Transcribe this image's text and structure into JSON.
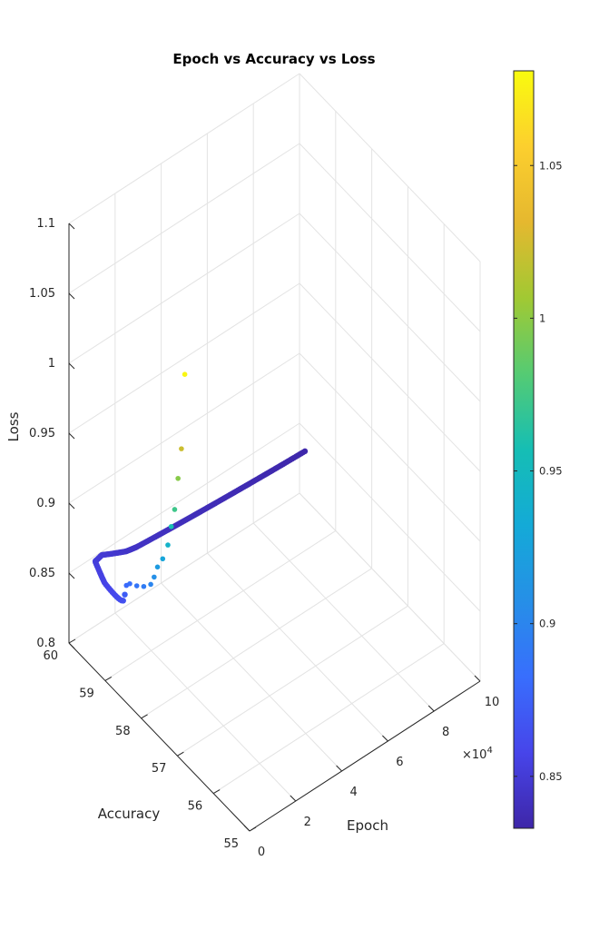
{
  "chart_data": {
    "type": "scatter3",
    "title": "Epoch vs Accuracy vs Loss",
    "xlabel": "Epoch",
    "ylabel": "Accuracy",
    "zlabel": "Loss",
    "x_exponent_label": "×10",
    "x_exponent_power": "4",
    "xlim": [
      0,
      100000
    ],
    "ylim": [
      55,
      60
    ],
    "zlim": [
      0.8,
      1.1
    ],
    "x_ticks": [
      0,
      20000,
      40000,
      60000,
      80000,
      100000
    ],
    "x_tick_labels": [
      "0",
      "2",
      "4",
      "6",
      "8",
      "10"
    ],
    "y_ticks": [
      55,
      56,
      57,
      58,
      59,
      60
    ],
    "y_tick_labels": [
      "55",
      "56",
      "57",
      "58",
      "59",
      "60"
    ],
    "z_ticks": [
      0.8,
      0.85,
      0.9,
      0.95,
      1.0,
      1.05,
      1.1
    ],
    "z_tick_labels": [
      "0.8",
      "0.85",
      "0.9",
      "0.95",
      "1",
      "1.05",
      "1.1"
    ],
    "grid": true,
    "colormap": "parula",
    "color_by": "loss",
    "colorbar": {
      "position": "right",
      "range": [
        0.833,
        1.081
      ],
      "ticks": [
        0.85,
        0.9,
        0.95,
        1.0,
        1.05
      ],
      "tick_labels": [
        "0.85",
        "0.9",
        "0.95",
        "1",
        "1.05"
      ]
    },
    "early_points": [
      {
        "epoch": 100,
        "accuracy": 56.8,
        "loss": 1.078
      },
      {
        "epoch": 200,
        "accuracy": 56.9,
        "loss": 1.022
      },
      {
        "epoch": 300,
        "accuracy": 57.0,
        "loss": 0.998
      },
      {
        "epoch": 400,
        "accuracy": 57.1,
        "loss": 0.973
      },
      {
        "epoch": 500,
        "accuracy": 57.2,
        "loss": 0.958
      },
      {
        "epoch": 600,
        "accuracy": 57.3,
        "loss": 0.942
      },
      {
        "epoch": 700,
        "accuracy": 57.45,
        "loss": 0.928
      },
      {
        "epoch": 800,
        "accuracy": 57.6,
        "loss": 0.918
      },
      {
        "epoch": 900,
        "accuracy": 57.7,
        "loss": 0.908
      },
      {
        "epoch": 1000,
        "accuracy": 57.8,
        "loss": 0.9
      },
      {
        "epoch": 1100,
        "accuracy": 58.0,
        "loss": 0.893
      },
      {
        "epoch": 1200,
        "accuracy": 58.2,
        "loss": 0.888
      },
      {
        "epoch": 1300,
        "accuracy": 58.4,
        "loss": 0.884
      },
      {
        "epoch": 1400,
        "accuracy": 58.5,
        "loss": 0.88
      }
    ],
    "trajectory": {
      "count": 180,
      "loss_start": 0.872,
      "loss_end": 0.834,
      "waypoints": [
        {
          "epoch": 1500,
          "accuracy": 58.55
        },
        {
          "epoch": 4500,
          "accuracy": 59.3
        },
        {
          "epoch": 9000,
          "accuracy": 59.85
        },
        {
          "epoch": 13500,
          "accuracy": 59.95
        },
        {
          "epoch": 18000,
          "accuracy": 59.9
        },
        {
          "epoch": 22500,
          "accuracy": 59.85
        },
        {
          "epoch": 27000,
          "accuracy": 59.85
        },
        {
          "epoch": 36000,
          "accuracy": 59.85
        },
        {
          "epoch": 45000,
          "accuracy": 59.85
        },
        {
          "epoch": 54000,
          "accuracy": 59.85
        },
        {
          "epoch": 63000,
          "accuracy": 59.85
        },
        {
          "epoch": 72000,
          "accuracy": 59.85
        },
        {
          "epoch": 81000,
          "accuracy": 59.85
        },
        {
          "epoch": 90000,
          "accuracy": 59.85
        },
        {
          "epoch": 100000,
          "accuracy": 59.85
        }
      ]
    }
  }
}
